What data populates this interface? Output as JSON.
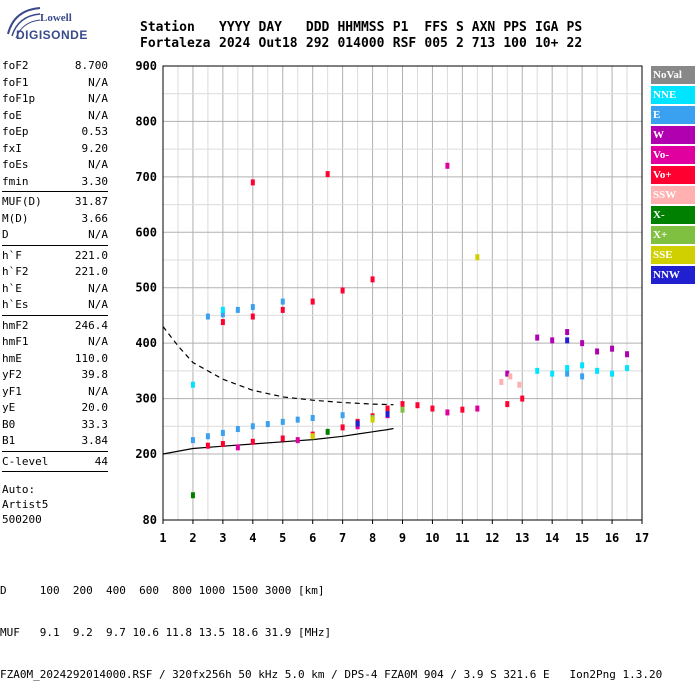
{
  "logo": {
    "line1": "Lowell",
    "line2": "DIGISONDE"
  },
  "header": {
    "row1": [
      "Station",
      "YYYY",
      "DAY",
      "DDD",
      "HHMMSS",
      "P1",
      "FFS",
      "S",
      "AXN",
      "PPS",
      "IGA",
      "PS"
    ],
    "row2": [
      "Fortaleza",
      "2024",
      "Out18",
      "292",
      "014000",
      "RSF",
      "005",
      "2",
      "713",
      "100",
      "10+",
      "22"
    ]
  },
  "params": [
    {
      "k": "foF2",
      "v": "8.700"
    },
    {
      "k": "foF1",
      "v": "N/A"
    },
    {
      "k": "foF1p",
      "v": "N/A"
    },
    {
      "k": "foE",
      "v": "N/A"
    },
    {
      "k": "foEp",
      "v": "0.53"
    },
    {
      "k": "fxI",
      "v": "9.20"
    },
    {
      "k": "foEs",
      "v": "N/A"
    },
    {
      "k": "fmin",
      "v": "3.30"
    },
    {
      "sep": true
    },
    {
      "k": "MUF(D)",
      "v": "31.87"
    },
    {
      "k": "M(D)",
      "v": "3.66"
    },
    {
      "k": "D",
      "v": "N/A"
    },
    {
      "sep": true
    },
    {
      "k": "h`F",
      "v": "221.0"
    },
    {
      "k": "h`F2",
      "v": "221.0"
    },
    {
      "k": "h`E",
      "v": "N/A"
    },
    {
      "k": "h`Es",
      "v": "N/A"
    },
    {
      "sep": true
    },
    {
      "k": "hmF2",
      "v": "246.4"
    },
    {
      "k": "hmF1",
      "v": "N/A"
    },
    {
      "k": "hmE",
      "v": "110.0"
    },
    {
      "k": "yF2",
      "v": "39.8"
    },
    {
      "k": "yF1",
      "v": "N/A"
    },
    {
      "k": "yE",
      "v": "20.0"
    },
    {
      "k": "B0",
      "v": "33.3"
    },
    {
      "k": "B1",
      "v": "3.84"
    },
    {
      "sep": true
    },
    {
      "k": "C-level",
      "v": "44"
    },
    {
      "sep": true
    }
  ],
  "auto": [
    "Auto:",
    "Artist5",
    "500200"
  ],
  "legend": [
    {
      "label": "NoVal",
      "color": "#888888"
    },
    {
      "label": "NNE",
      "color": "#00e5ff"
    },
    {
      "label": "E",
      "color": "#3aa0f0"
    },
    {
      "label": "W",
      "color": "#b000b0"
    },
    {
      "label": "Vo-",
      "color": "#e000a0"
    },
    {
      "label": "Vo+",
      "color": "#ff0030"
    },
    {
      "label": "SSW",
      "color": "#ffb0b0"
    },
    {
      "label": "X-",
      "color": "#008000"
    },
    {
      "label": "X+",
      "color": "#80c040"
    },
    {
      "label": "SSE",
      "color": "#d0d000"
    },
    {
      "label": "NNW",
      "color": "#2020d0"
    }
  ],
  "footer": {
    "line1": "D     100  200  400  600  800 1000 1500 3000 [km]",
    "line2": "MUF   9.1  9.2  9.7 10.6 11.8 13.5 18.6 31.9 [MHz]",
    "line3": "FZA0M_2024292014000.RSF / 320fx256h 50 kHz 5.0 km / DPS-4 FZA0M 904 / 3.9 S 321.6 E   Ion2Png 1.3.20"
  },
  "chart_data": {
    "type": "scatter",
    "title": "",
    "xlabel": "",
    "ylabel": "",
    "xlim": [
      1,
      17
    ],
    "ylim": [
      80,
      900
    ],
    "xticks": [
      1,
      2,
      3,
      4,
      5,
      6,
      7,
      8,
      9,
      10,
      11,
      12,
      13,
      14,
      15,
      16,
      17
    ],
    "yticks": [
      80,
      200,
      300,
      400,
      500,
      600,
      700,
      800,
      900
    ],
    "grid": true,
    "series": [
      {
        "name": "E",
        "color": "#3aa0f0",
        "points": [
          [
            2.0,
            225
          ],
          [
            2.5,
            232
          ],
          [
            3.0,
            238
          ],
          [
            3.5,
            245
          ],
          [
            4.0,
            250
          ],
          [
            4.5,
            254
          ],
          [
            5.0,
            258
          ],
          [
            5.5,
            262
          ],
          [
            6.0,
            265
          ],
          [
            7.0,
            270
          ],
          [
            2.5,
            448
          ],
          [
            3.0,
            452
          ],
          [
            3.5,
            460
          ],
          [
            4.0,
            465
          ],
          [
            5.0,
            475
          ],
          [
            14.5,
            345
          ],
          [
            15.0,
            340
          ]
        ]
      },
      {
        "name": "NNE",
        "color": "#00e5ff",
        "points": [
          [
            13.5,
            350
          ],
          [
            14.0,
            345
          ],
          [
            14.5,
            355
          ],
          [
            15.0,
            360
          ],
          [
            15.5,
            350
          ],
          [
            16.0,
            345
          ],
          [
            16.5,
            355
          ],
          [
            3.0,
            460
          ],
          [
            2.0,
            325
          ]
        ]
      },
      {
        "name": "Vo+",
        "color": "#ff0030",
        "points": [
          [
            2.5,
            215
          ],
          [
            3.0,
            218
          ],
          [
            4.0,
            222
          ],
          [
            5.0,
            228
          ],
          [
            6.0,
            235
          ],
          [
            7.0,
            248
          ],
          [
            7.5,
            258
          ],
          [
            8.0,
            268
          ],
          [
            8.5,
            282
          ],
          [
            9.0,
            290
          ],
          [
            9.5,
            288
          ],
          [
            10.0,
            282
          ],
          [
            11.0,
            280
          ],
          [
            12.5,
            290
          ],
          [
            13.0,
            300
          ],
          [
            3.0,
            438
          ],
          [
            4.0,
            448
          ],
          [
            5.0,
            460
          ],
          [
            6.0,
            475
          ],
          [
            7.0,
            495
          ],
          [
            8.0,
            515
          ],
          [
            4.0,
            690
          ],
          [
            6.5,
            705
          ]
        ]
      },
      {
        "name": "Vo-",
        "color": "#e000a0",
        "points": [
          [
            3.5,
            212
          ],
          [
            5.5,
            225
          ],
          [
            7.5,
            250
          ],
          [
            8.5,
            270
          ],
          [
            10.5,
            275
          ],
          [
            11.5,
            282
          ],
          [
            10.5,
            720
          ]
        ]
      },
      {
        "name": "W",
        "color": "#b000b0",
        "points": [
          [
            13.5,
            410
          ],
          [
            14.0,
            405
          ],
          [
            14.5,
            420
          ],
          [
            15.0,
            400
          ],
          [
            15.5,
            385
          ],
          [
            16.0,
            390
          ],
          [
            16.5,
            380
          ],
          [
            12.5,
            345
          ]
        ]
      },
      {
        "name": "SSW",
        "color": "#ffb0b0",
        "points": [
          [
            12.3,
            330
          ],
          [
            12.6,
            340
          ],
          [
            12.9,
            325
          ]
        ]
      },
      {
        "name": "X-",
        "color": "#008000",
        "points": [
          [
            6.5,
            240
          ],
          [
            7.5,
            255
          ],
          [
            2.0,
            125
          ]
        ]
      },
      {
        "name": "X+",
        "color": "#80c040",
        "points": [
          [
            8.0,
            265
          ],
          [
            9.0,
            280
          ]
        ]
      },
      {
        "name": "SSE",
        "color": "#d0d000",
        "points": [
          [
            6.0,
            232
          ],
          [
            8.0,
            262
          ],
          [
            11.5,
            555
          ]
        ]
      },
      {
        "name": "NNW",
        "color": "#2020d0",
        "points": [
          [
            7.5,
            255
          ],
          [
            8.5,
            272
          ],
          [
            14.5,
            405
          ]
        ]
      }
    ],
    "profile_curve": [
      [
        1.0,
        200
      ],
      [
        2.0,
        210
      ],
      [
        3.0,
        214
      ],
      [
        4.0,
        218
      ],
      [
        5.0,
        222
      ],
      [
        6.0,
        226
      ],
      [
        7.0,
        232
      ],
      [
        7.5,
        236
      ],
      [
        8.0,
        240
      ],
      [
        8.5,
        244
      ],
      [
        8.7,
        246
      ]
    ],
    "dashed_curve": [
      [
        1.0,
        430
      ],
      [
        1.5,
        395
      ],
      [
        2.0,
        365
      ],
      [
        3.0,
        335
      ],
      [
        4.0,
        315
      ],
      [
        5.0,
        303
      ],
      [
        6.0,
        297
      ],
      [
        7.0,
        293
      ],
      [
        8.0,
        290
      ],
      [
        8.7,
        289
      ]
    ]
  }
}
